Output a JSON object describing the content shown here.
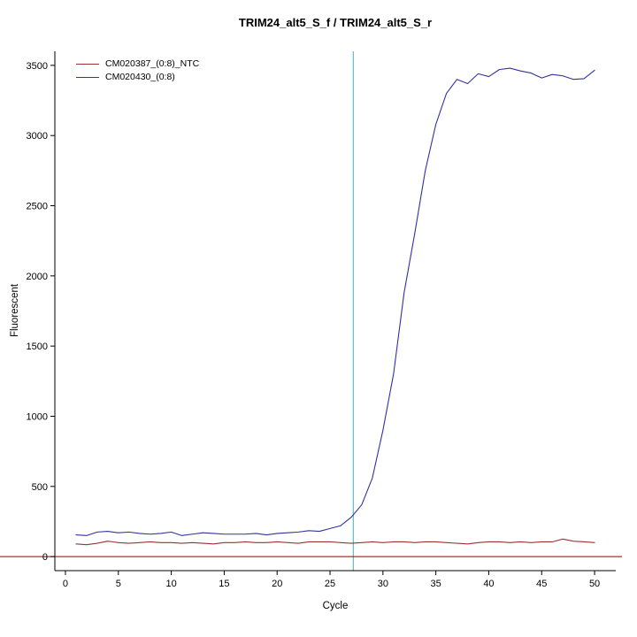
{
  "chart_data": {
    "type": "line",
    "title": "TRIM24_alt5_S_f / TRIM24_alt5_S_r",
    "xlabel": "Cycle",
    "ylabel": "Fluorescent",
    "xlim": [
      -1,
      52
    ],
    "ylim": [
      -100,
      3600
    ],
    "xticks": [
      0,
      5,
      10,
      15,
      20,
      25,
      30,
      35,
      40,
      45,
      50
    ],
    "yticks": [
      0,
      500,
      1000,
      1500,
      2000,
      2500,
      3000,
      3500
    ],
    "grid": false,
    "legend_position": "top-left",
    "ct_line_x": 27.2,
    "threshold_line_y": 0,
    "colors": {
      "ct_line": "#00E5EE",
      "threshold_line": "#8B0000",
      "axis": "#000000"
    },
    "x": [
      1,
      2,
      3,
      4,
      5,
      6,
      7,
      8,
      9,
      10,
      11,
      12,
      13,
      14,
      15,
      16,
      17,
      18,
      19,
      20,
      21,
      22,
      23,
      24,
      25,
      26,
      27,
      28,
      29,
      30,
      31,
      32,
      33,
      34,
      35,
      36,
      37,
      38,
      39,
      40,
      41,
      42,
      43,
      44,
      45,
      46,
      47,
      48,
      49,
      50
    ],
    "series": [
      {
        "name": "CM020387_(0:8)_NTC",
        "color": "#993333",
        "values": [
          90,
          85,
          95,
          110,
          100,
          95,
          100,
          105,
          100,
          100,
          95,
          100,
          95,
          90,
          100,
          100,
          105,
          100,
          100,
          105,
          100,
          95,
          105,
          105,
          105,
          100,
          95,
          100,
          105,
          100,
          105,
          105,
          100,
          105,
          105,
          100,
          95,
          90,
          100,
          105,
          105,
          100,
          105,
          100,
          105,
          105,
          125,
          110,
          105,
          100
        ]
      },
      {
        "name": "CM020430_(0:8)",
        "color": "#333399",
        "values": [
          155,
          150,
          175,
          180,
          170,
          175,
          165,
          160,
          165,
          175,
          150,
          160,
          170,
          165,
          160,
          160,
          160,
          165,
          155,
          165,
          170,
          175,
          185,
          180,
          200,
          220,
          280,
          370,
          560,
          900,
          1300,
          1880,
          2300,
          2750,
          3080,
          3300,
          3400,
          3370,
          3440,
          3420,
          3470,
          3480,
          3460,
          3445,
          3410,
          3435,
          3425,
          3400,
          3405,
          3465
        ]
      }
    ]
  }
}
